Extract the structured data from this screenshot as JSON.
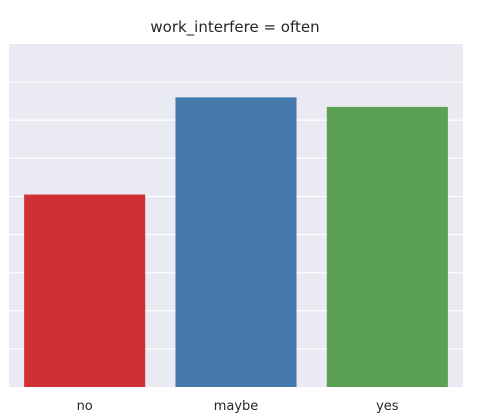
{
  "chart_data": {
    "type": "bar",
    "title": "work_interfere = often",
    "categories": [
      "no",
      "maybe",
      "yes"
    ],
    "values": [
      101,
      152,
      147
    ],
    "colors": [
      "#d03035",
      "#4578ab",
      "#5aa155"
    ],
    "ylim": [
      0,
      180
    ],
    "grid": true,
    "xlabel": "",
    "ylabel": "",
    "background": "#eaeaf2"
  }
}
